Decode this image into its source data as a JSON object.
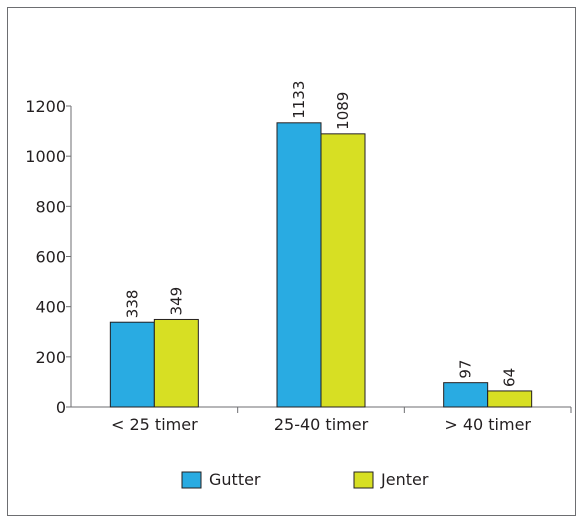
{
  "chart_data": {
    "type": "bar",
    "categories": [
      "< 25 timer",
      "25-40 timer",
      "> 40 timer"
    ],
    "series": [
      {
        "name": "Gutter",
        "values": [
          338,
          1133,
          97
        ],
        "color": "#29abe2"
      },
      {
        "name": "Jenter",
        "values": [
          349,
          1089,
          64
        ],
        "color": "#d7df23"
      }
    ],
    "yticks": [
      0,
      200,
      400,
      600,
      800,
      1000,
      1200
    ],
    "ylim": [
      0,
      1200
    ],
    "grid": false,
    "legend_position": "bottom",
    "bar_outline": "#231f20",
    "axis_color": "#6d6e71"
  }
}
